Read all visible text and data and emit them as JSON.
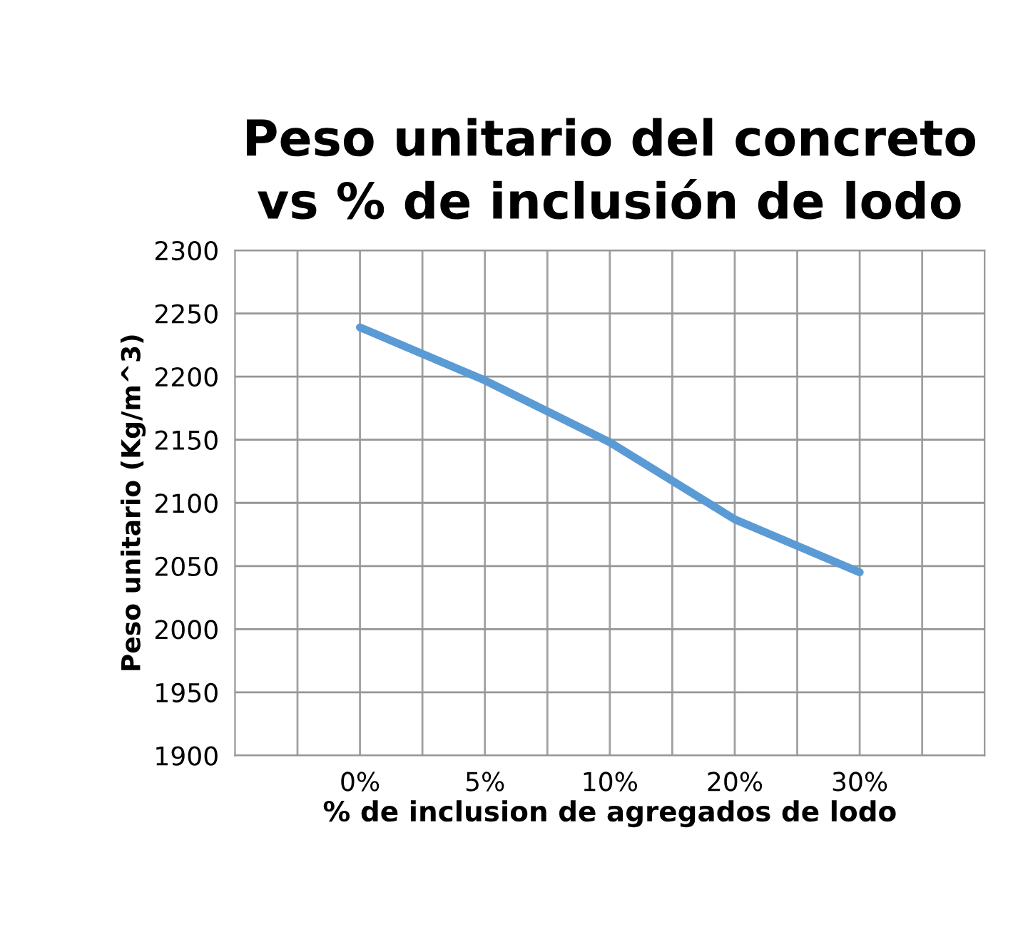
{
  "chart_data": {
    "type": "line",
    "title": "Peso unitario del concreto\nvs % de inclusión de lodo",
    "xlabel": "% de inclusion de agregados de lodo",
    "ylabel": "Peso unitario (Kg/m^3)",
    "categories": [
      "0%",
      "5%",
      "10%",
      "20%",
      "30%"
    ],
    "series": [
      {
        "color": "#5b9bd5",
        "values": [
          2239,
          2197,
          2148,
          2087,
          2045
        ]
      }
    ],
    "ylim": [
      1900,
      2300
    ],
    "yticks": [
      1900,
      1950,
      2000,
      2050,
      2100,
      2150,
      2200,
      2250,
      2300
    ],
    "grid": true,
    "legend": false,
    "marker": "none",
    "line_style": "solid"
  }
}
